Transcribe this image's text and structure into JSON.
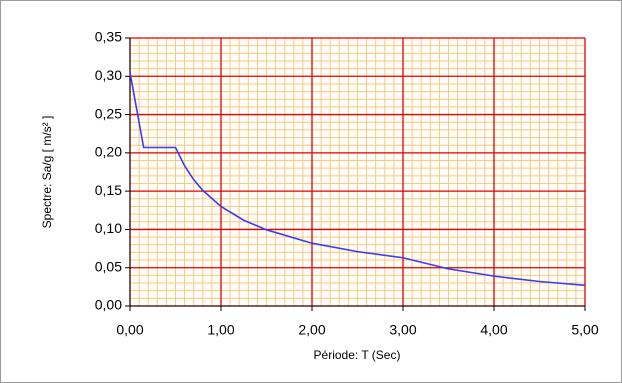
{
  "chart_data": {
    "type": "line",
    "x_label": "Période: T (Sec)",
    "y_label": "Spectre: Sa/g [ m/s² ]",
    "x": [
      0,
      0.15,
      0.5,
      0.6,
      0.7,
      0.8,
      1.0,
      1.25,
      1.5,
      2.0,
      2.5,
      3.0,
      3.5,
      4.0,
      4.5,
      5.0
    ],
    "series": [
      {
        "color": "#3c3cf0",
        "values": [
          0.305,
          0.207,
          0.207,
          0.183,
          0.165,
          0.151,
          0.13,
          0.112,
          0.0995,
          0.082,
          0.071,
          0.063,
          0.0485,
          0.039,
          0.032,
          0.027
        ]
      }
    ],
    "xlim": [
      0,
      5
    ],
    "ylim": [
      0,
      0.35
    ],
    "xticks": [
      {
        "value": 0,
        "label": "0,00"
      },
      {
        "value": 1,
        "label": "1,00"
      },
      {
        "value": 2,
        "label": "2,00"
      },
      {
        "value": 3,
        "label": "3,00"
      },
      {
        "value": 4,
        "label": "4,00"
      },
      {
        "value": 5,
        "label": "5,00"
      }
    ],
    "yticks": [
      {
        "value": 0,
        "label": "0,00"
      },
      {
        "value": 0.05,
        "label": "0,05"
      },
      {
        "value": 0.1,
        "label": "0,10"
      },
      {
        "value": 0.15,
        "label": "0,15"
      },
      {
        "value": 0.2,
        "label": "0,20"
      },
      {
        "value": 0.25,
        "label": "0,25"
      },
      {
        "value": 0.3,
        "label": "0,30"
      },
      {
        "value": 0.35,
        "label": "0,35"
      }
    ],
    "grid": true,
    "grid_color": "#e00000",
    "minor_grid": true,
    "minor_grid_color": "#f4c98c"
  }
}
